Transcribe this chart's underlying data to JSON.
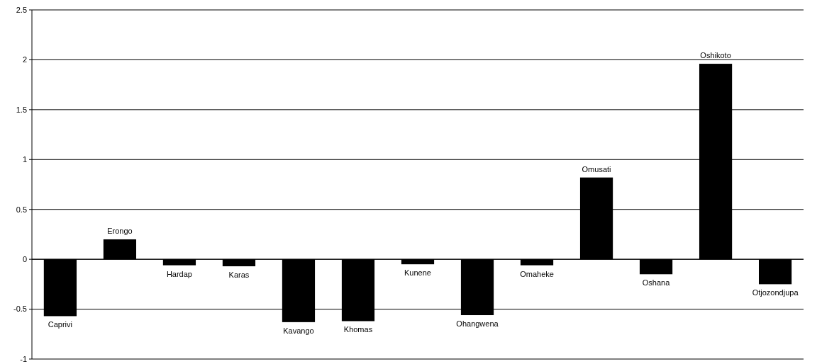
{
  "chart_data": {
    "type": "bar",
    "categories": [
      "Caprivi",
      "Erongo",
      "Hardap",
      "Karas",
      "Kavango",
      "Khomas",
      "Kunene",
      "Ohangwena",
      "Omaheke",
      "Omusati",
      "Oshana",
      "Oshikoto",
      "Otjozondjupa"
    ],
    "values": [
      -0.57,
      0.2,
      -0.06,
      -0.07,
      -0.63,
      -0.62,
      -0.05,
      -0.56,
      -0.06,
      0.82,
      -0.15,
      1.96,
      -0.25
    ],
    "color": "#000000",
    "ylim": [
      -1,
      2.5
    ],
    "yticks": [
      -1,
      -0.5,
      0,
      0.5,
      1,
      1.5,
      2,
      2.5
    ],
    "grid": "y"
  }
}
